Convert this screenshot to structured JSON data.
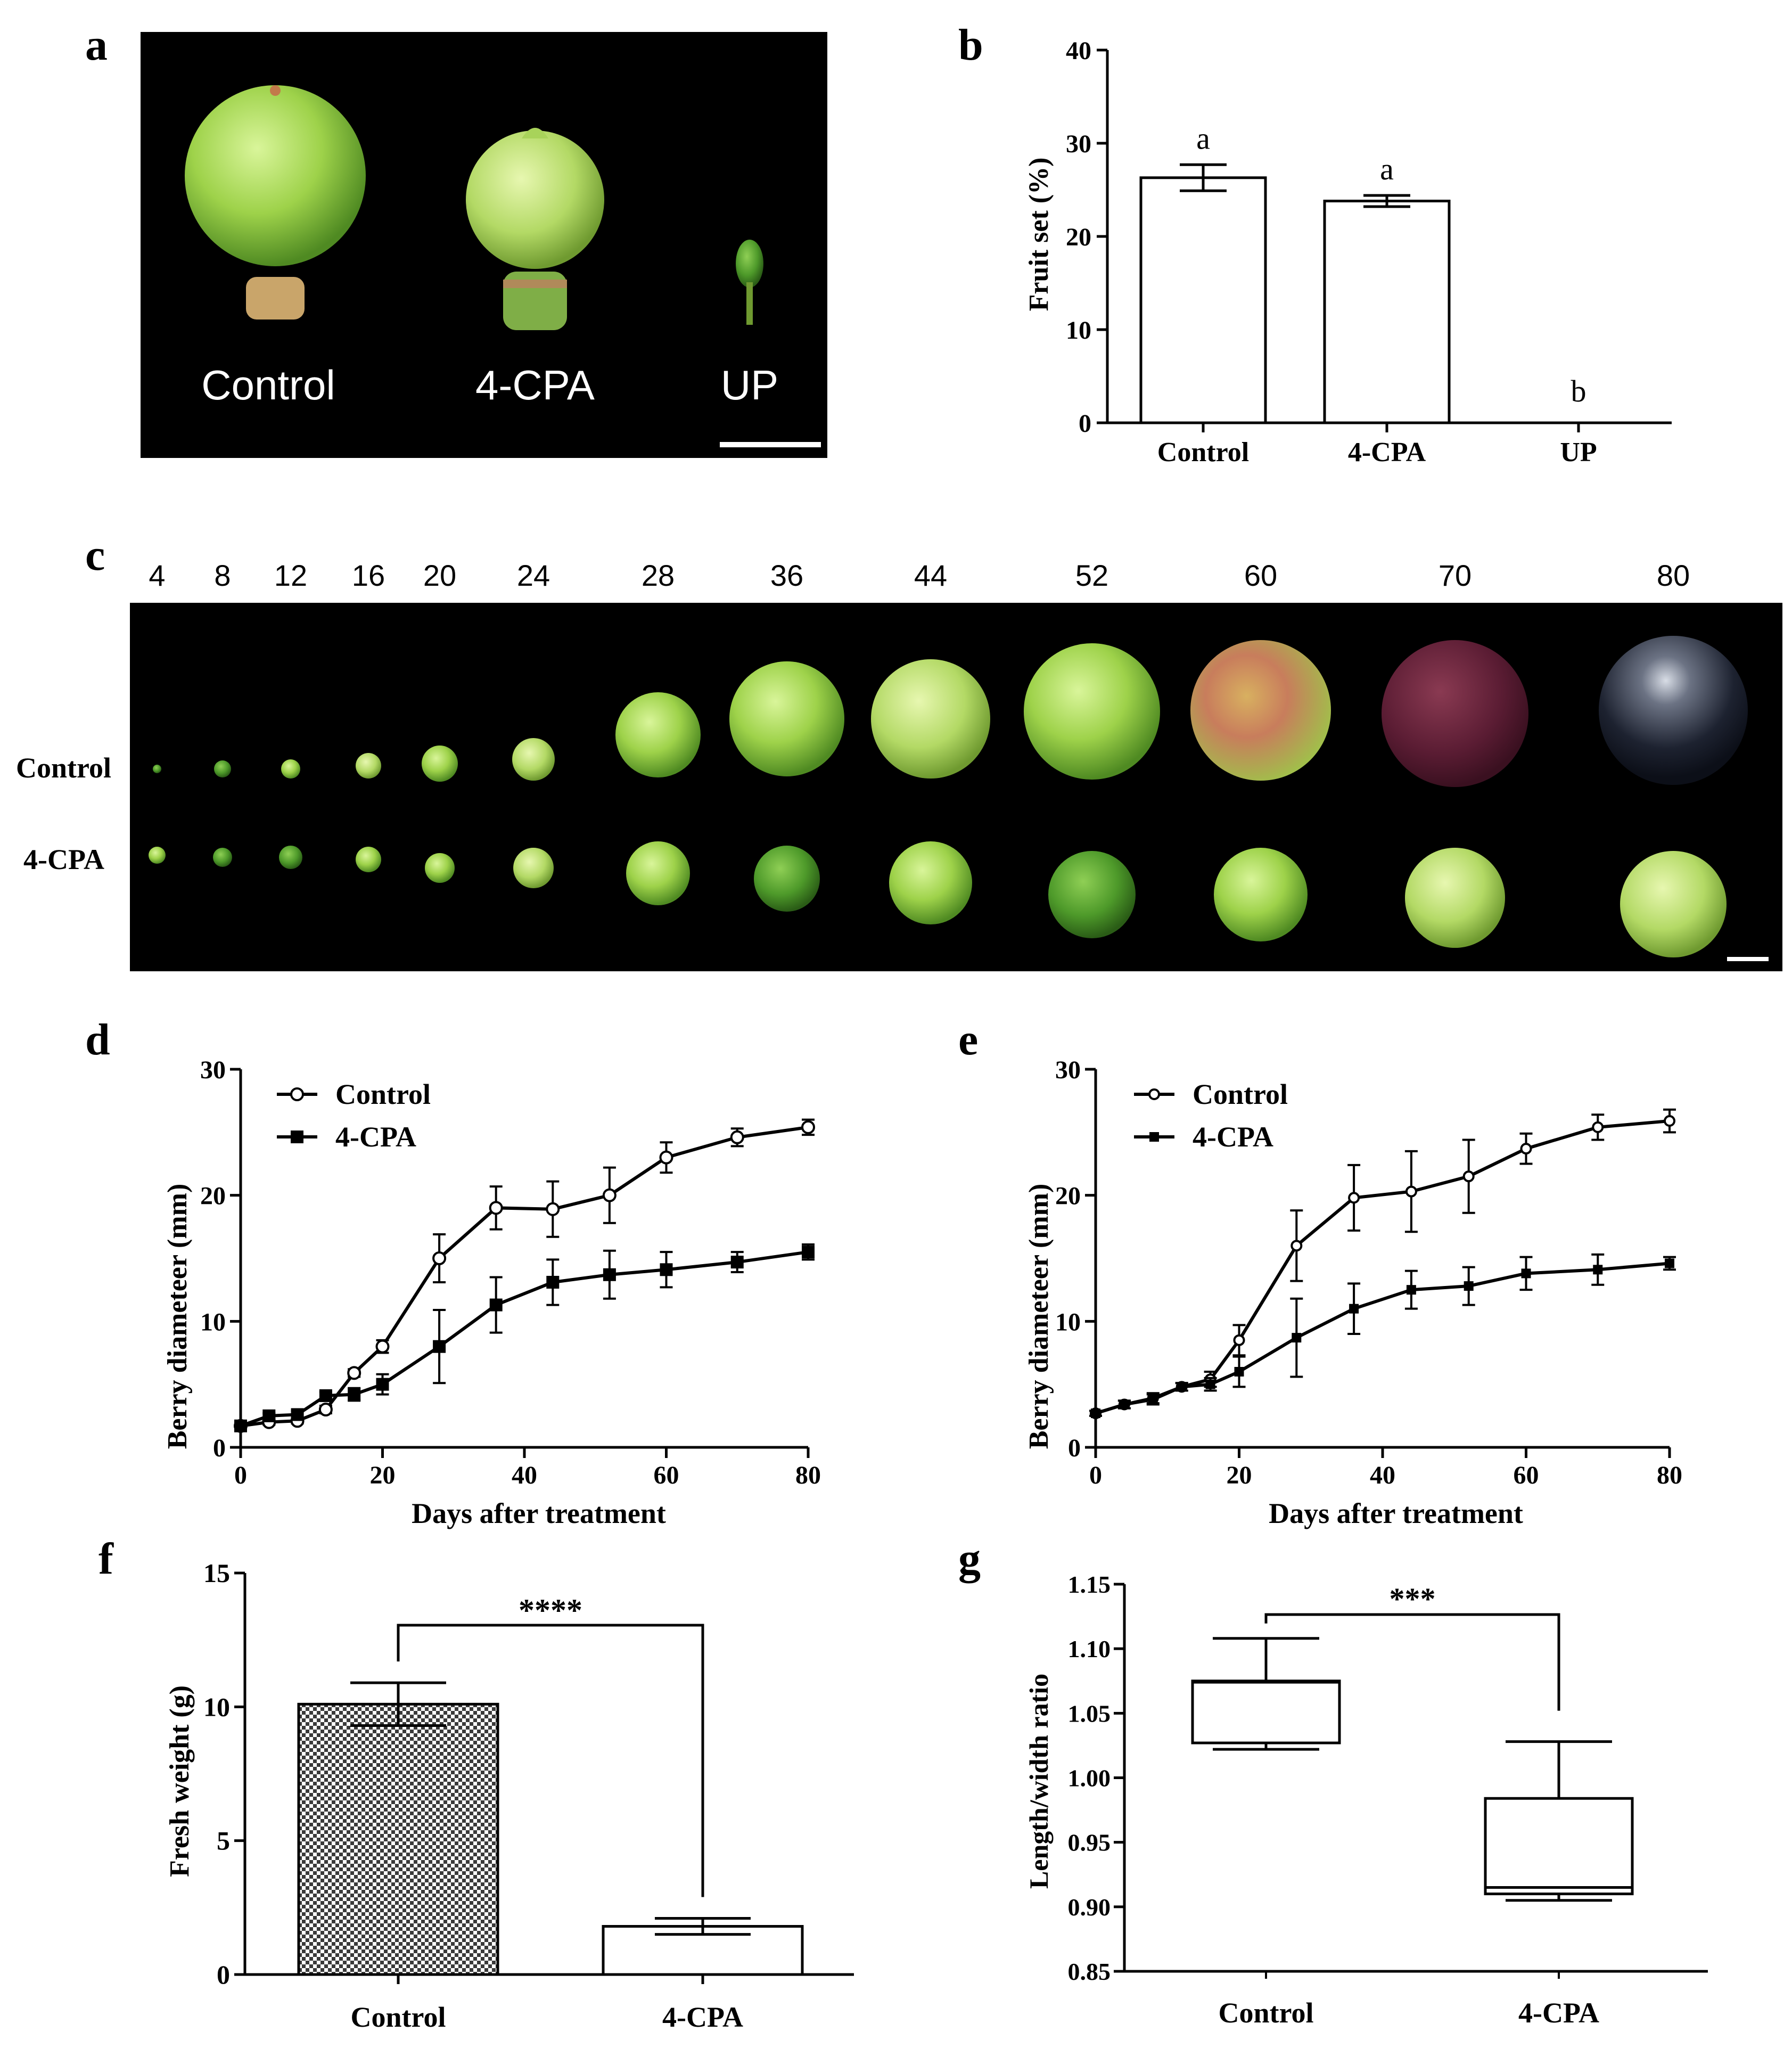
{
  "panels": {
    "a": {
      "letter": "a",
      "labels": [
        "Control",
        "4-CPA",
        "UP"
      ]
    },
    "b": {
      "letter": "b",
      "ylabel": "Fruit set (%)",
      "categories": [
        "Control",
        "4-CPA",
        "UP"
      ],
      "yticks": [
        "0",
        "10",
        "20",
        "30",
        "40"
      ],
      "sig": [
        "a",
        "a",
        "b"
      ]
    },
    "c": {
      "letter": "c",
      "days": [
        "4",
        "8",
        "12",
        "16",
        "20",
        "24",
        "28",
        "36",
        "44",
        "52",
        "60",
        "70",
        "80"
      ],
      "row_labels": [
        "Control",
        "4-CPA"
      ]
    },
    "d": {
      "letter": "d",
      "ylabel": "Berry diameteer (mm)",
      "xlabel": "Days after treatment",
      "yticks": [
        "0",
        "10",
        "20",
        "30"
      ],
      "xticks": [
        "0",
        "20",
        "40",
        "60",
        "80"
      ],
      "legend": [
        "Control",
        "4-CPA"
      ]
    },
    "e": {
      "letter": "e",
      "ylabel": "Berry diameteer (mm)",
      "xlabel": "Days after treatment",
      "yticks": [
        "0",
        "10",
        "20",
        "30"
      ],
      "xticks": [
        "0",
        "20",
        "40",
        "60",
        "80"
      ],
      "legend": [
        "Control",
        "4-CPA"
      ]
    },
    "f": {
      "letter": "f",
      "ylabel": "Fresh weight (g)",
      "categories": [
        "Control",
        "4-CPA"
      ],
      "yticks": [
        "0",
        "5",
        "10",
        "15"
      ],
      "sig": "****"
    },
    "g": {
      "letter": "g",
      "ylabel": "Length/width ratio",
      "categories": [
        "Control",
        "4-CPA"
      ],
      "yticks": [
        "0.85",
        "0.90",
        "0.95",
        "1.00",
        "1.05",
        "1.10",
        "1.15"
      ],
      "sig": "***"
    }
  },
  "chart_data": [
    {
      "panel": "b",
      "type": "bar",
      "categories": [
        "Control",
        "4-CPA",
        "UP"
      ],
      "values": [
        26.3,
        23.8,
        0
      ],
      "errors": [
        1.4,
        0.6,
        0
      ],
      "ylabel": "Fruit set (%)",
      "ylim": [
        0,
        40
      ]
    },
    {
      "panel": "d",
      "type": "line",
      "xlabel": "Days after treatment",
      "ylabel": "Berry diameteer (mm)",
      "xlim": [
        0,
        80
      ],
      "ylim": [
        0,
        30
      ],
      "series": [
        {
          "name": "Control",
          "marker": "open-circle",
          "x": [
            0,
            4,
            8,
            12,
            16,
            20,
            28,
            36,
            44,
            52,
            60,
            70,
            80
          ],
          "y": [
            1.7,
            2.0,
            2.1,
            3.0,
            5.9,
            8.0,
            15.0,
            19.0,
            18.9,
            20.0,
            23.0,
            24.6,
            25.4
          ],
          "err": [
            0.2,
            0.2,
            0.2,
            0.3,
            0.3,
            0.5,
            1.9,
            1.7,
            2.2,
            2.2,
            1.2,
            0.7,
            0.6
          ]
        },
        {
          "name": "4-CPA",
          "marker": "filled-square",
          "x": [
            0,
            4,
            8,
            12,
            16,
            20,
            28,
            36,
            44,
            52,
            60,
            70,
            80
          ],
          "y": [
            1.7,
            2.5,
            2.6,
            4.1,
            4.2,
            5.0,
            8.0,
            11.3,
            13.1,
            13.7,
            14.1,
            14.7,
            15.5
          ],
          "err": [
            0.2,
            0.2,
            0.3,
            0.3,
            0.5,
            0.8,
            2.9,
            2.2,
            1.8,
            1.9,
            1.4,
            0.8,
            0.6
          ]
        }
      ]
    },
    {
      "panel": "e",
      "type": "line",
      "xlabel": "Days after treatment",
      "ylabel": "Berry diameteer (mm)",
      "xlim": [
        0,
        80
      ],
      "ylim": [
        0,
        30
      ],
      "series": [
        {
          "name": "Control",
          "marker": "open-circle",
          "x": [
            0,
            4,
            8,
            12,
            16,
            20,
            28,
            36,
            44,
            52,
            60,
            70,
            80
          ],
          "y": [
            2.7,
            3.4,
            3.9,
            4.8,
            5.4,
            8.5,
            16.0,
            19.8,
            20.3,
            21.5,
            23.7,
            25.4,
            25.9
          ],
          "err": [
            0.2,
            0.3,
            0.4,
            0.3,
            0.6,
            1.2,
            2.8,
            2.6,
            3.2,
            2.9,
            1.2,
            1.0,
            0.9
          ]
        },
        {
          "name": "4-CPA",
          "marker": "filled-square",
          "x": [
            0,
            4,
            8,
            12,
            16,
            20,
            28,
            36,
            44,
            52,
            60,
            70,
            80
          ],
          "y": [
            2.7,
            3.4,
            3.8,
            4.8,
            5.0,
            6.0,
            8.7,
            11.0,
            12.5,
            12.8,
            13.8,
            14.1,
            14.6
          ],
          "err": [
            0.2,
            0.3,
            0.4,
            0.3,
            0.5,
            1.2,
            3.1,
            2.0,
            1.5,
            1.5,
            1.3,
            1.2,
            0.5
          ]
        }
      ]
    },
    {
      "panel": "f",
      "type": "bar",
      "categories": [
        "Control",
        "4-CPA"
      ],
      "values": [
        10.1,
        1.8
      ],
      "errors": [
        0.8,
        0.3
      ],
      "ylabel": "Fresh weight (g)",
      "ylim": [
        0,
        15
      ],
      "annotation": "****"
    },
    {
      "panel": "g",
      "type": "box",
      "categories": [
        "Control",
        "4-CPA"
      ],
      "boxes": [
        {
          "min": 1.022,
          "q1": 1.027,
          "median": 1.074,
          "q3": 1.075,
          "max": 1.108
        },
        {
          "min": 0.905,
          "q1": 0.91,
          "median": 0.915,
          "q3": 0.984,
          "max": 1.028
        }
      ],
      "ylabel": "Length/width ratio",
      "ylim": [
        0.85,
        1.15
      ],
      "annotation": "***"
    }
  ]
}
